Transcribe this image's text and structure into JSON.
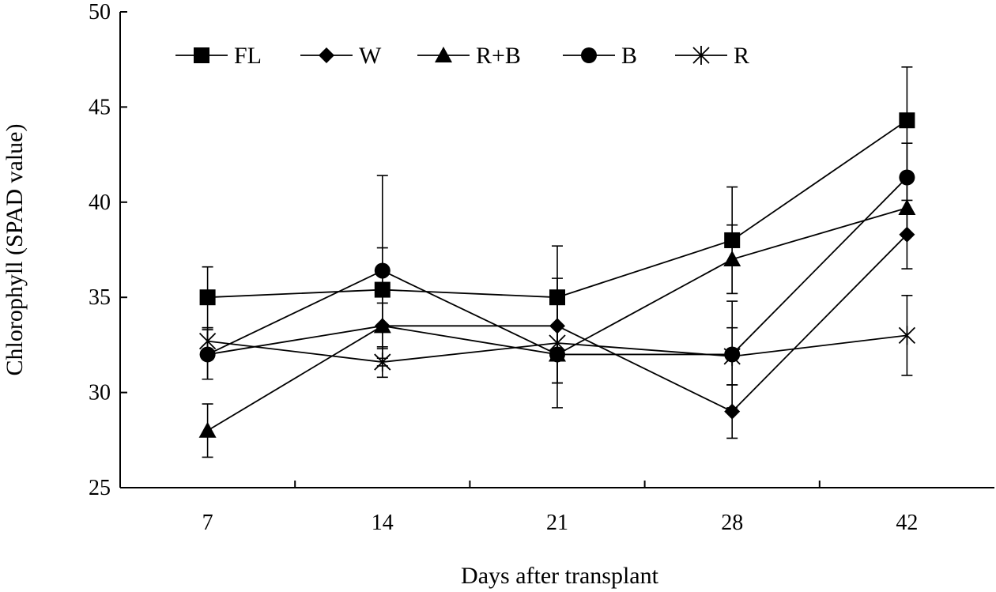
{
  "chart_data": {
    "type": "line",
    "title": "",
    "xlabel": "Days after transplant",
    "ylabel": "Chlorophyll (SPAD value)",
    "categories": [
      "7",
      "14",
      "21",
      "28",
      "42"
    ],
    "ylim": [
      25,
      50
    ],
    "yticks": [
      25,
      30,
      35,
      40,
      45,
      50
    ],
    "grid": false,
    "legend_position": "top",
    "series": [
      {
        "name": "FL",
        "marker": "square",
        "values": [
          35.0,
          35.4,
          35.0,
          38.0,
          44.3
        ],
        "errors": [
          1.6,
          2.2,
          2.7,
          2.8,
          2.8
        ]
      },
      {
        "name": "W",
        "marker": "diamond",
        "values": [
          32.0,
          33.5,
          33.5,
          29.0,
          38.3
        ],
        "errors": [
          1.3,
          1.2,
          1.6,
          1.4,
          1.8
        ]
      },
      {
        "name": "R+B",
        "marker": "triangle",
        "values": [
          28.0,
          33.5,
          32.0,
          37.0,
          39.7
        ],
        "errors": [
          1.4,
          1.7,
          1.5,
          1.8,
          1.5
        ]
      },
      {
        "name": "B",
        "marker": "circle",
        "values": [
          32.0,
          36.4,
          32.0,
          32.0,
          41.3
        ],
        "errors": [
          1.3,
          5.0,
          1.5,
          2.8,
          1.8
        ]
      },
      {
        "name": "R",
        "marker": "star",
        "values": [
          32.7,
          31.6,
          32.6,
          31.9,
          33.0
        ],
        "errors": [
          0.7,
          0.8,
          3.4,
          1.5,
          2.1
        ]
      }
    ]
  }
}
